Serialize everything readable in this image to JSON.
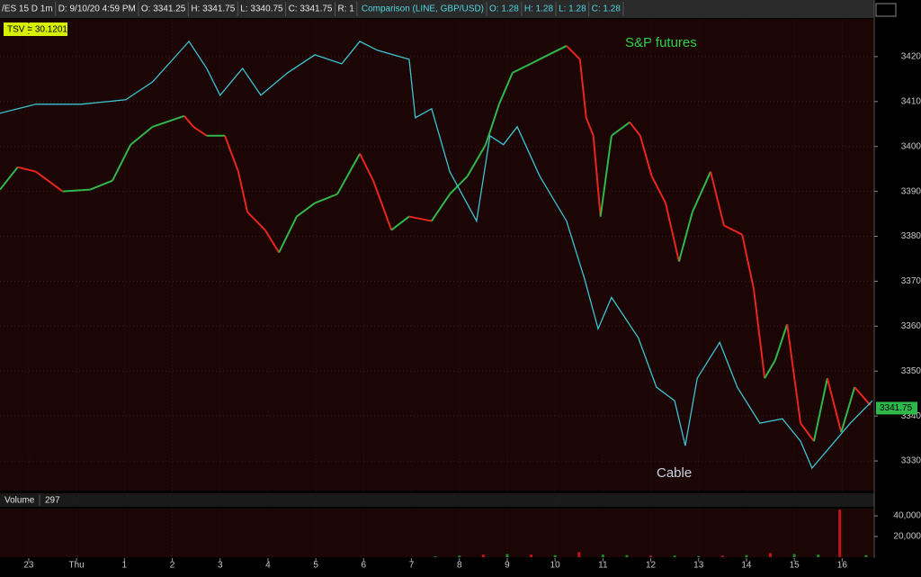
{
  "chart_data": [
    {
      "type": "line",
      "header": {
        "symbol": [
          "/ES 15 D 1m",
          "D: 9/10/20 4:59 PM",
          "O: 3341.25",
          "H: 3341.75",
          "L: 3340.75",
          "C: 3341.75",
          "R: 1"
        ],
        "comparison": [
          "Comparison (LINE, GBP/USD)",
          "O: 1.28",
          "H: 1.28",
          "L: 1.28",
          "C: 1.28"
        ]
      },
      "study_label": "TSV = 30.1201",
      "last_price": 3341.75,
      "xlim": [
        -0.6,
        17.67
      ],
      "xticks": [
        {
          "value": 0,
          "label": "23"
        },
        {
          "value": 1,
          "label": "Thu"
        },
        {
          "value": 2,
          "label": "1"
        },
        {
          "value": 3,
          "label": "2"
        },
        {
          "value": 4,
          "label": "3"
        },
        {
          "value": 5,
          "label": "4"
        },
        {
          "value": 6,
          "label": "5"
        },
        {
          "value": 7,
          "label": "6"
        },
        {
          "value": 8,
          "label": "7"
        },
        {
          "value": 9,
          "label": "8"
        },
        {
          "value": 10,
          "label": "9"
        },
        {
          "value": 11,
          "label": "10"
        },
        {
          "value": 12,
          "label": "11"
        },
        {
          "value": 13,
          "label": "12"
        },
        {
          "value": 14,
          "label": "13"
        },
        {
          "value": 15,
          "label": "14"
        },
        {
          "value": 16,
          "label": "15"
        },
        {
          "value": 17,
          "label": "16"
        }
      ],
      "ylim": [
        3323.4,
        3428.4
      ],
      "yticks": [
        3330,
        3340,
        3350,
        3360,
        3370,
        3380,
        3390,
        3400,
        3410,
        3420
      ],
      "grid": true,
      "series": [
        {
          "name": "S&P futures",
          "up_color": "#2fb84a",
          "down_color": "#e8261c",
          "x": [
            -0.6,
            -0.23,
            0.15,
            0.71,
            1.28,
            1.75,
            2.13,
            2.59,
            3.25,
            3.44,
            3.72,
            4.1,
            4.38,
            4.57,
            4.94,
            5.23,
            5.6,
            5.98,
            6.45,
            6.92,
            7.2,
            7.58,
            7.95,
            8.42,
            8.8,
            9.17,
            9.55,
            9.83,
            10.11,
            10.49,
            10.86,
            11.24,
            11.52,
            11.65,
            11.8,
            11.95,
            12.18,
            12.56,
            12.78,
            13.02,
            13.31,
            13.59,
            13.87,
            14.25,
            14.53,
            14.91,
            15.15,
            15.38,
            15.6,
            15.85,
            16.13,
            16.41,
            16.69,
            16.98,
            17.26,
            17.59
          ],
          "values": [
            3390.4,
            3395.4,
            3394.4,
            3390,
            3390.4,
            3392.4,
            3400.4,
            3404.4,
            3406.8,
            3404.4,
            3402.4,
            3402.4,
            3394.4,
            3385.4,
            3381.4,
            3376.4,
            3384.4,
            3387.4,
            3389.4,
            3398.4,
            3392.4,
            3381.4,
            3384.4,
            3383.4,
            3389.4,
            3393.4,
            3400.4,
            3409.4,
            3416.4,
            3418.4,
            3420.4,
            3422.4,
            3419.4,
            3406.4,
            3402.4,
            3384.4,
            3402.4,
            3405.4,
            3402.4,
            3393.4,
            3387.4,
            3374.4,
            3385.4,
            3394.4,
            3382.4,
            3380.4,
            3368.4,
            3348.4,
            3352.4,
            3360.4,
            3338.4,
            3334.4,
            3348.4,
            3336.4,
            3346.4,
            3342.4
          ]
        },
        {
          "name": "Cable",
          "color": "#3cc4d2",
          "x": [
            -0.6,
            0.15,
            1.09,
            2.03,
            2.59,
            3.35,
            3.72,
            4.0,
            4.47,
            4.85,
            5.41,
            5.98,
            6.54,
            6.92,
            7.29,
            7.95,
            8.08,
            8.42,
            8.8,
            9.36,
            9.64,
            9.92,
            10.21,
            10.68,
            11.24,
            11.62,
            11.9,
            12.18,
            12.74,
            13.12,
            13.5,
            13.72,
            13.97,
            14.44,
            14.81,
            15.28,
            15.75,
            16.13,
            16.37,
            16.69,
            17.17,
            17.63
          ],
          "values": [
            3407.4,
            3409.4,
            3409.4,
            3410.4,
            3414.4,
            3423.4,
            3417.4,
            3411.4,
            3417.4,
            3411.4,
            3416.4,
            3420.4,
            3418.4,
            3423.4,
            3421.4,
            3419.4,
            3406.4,
            3408.4,
            3394.4,
            3383.4,
            3402.4,
            3400.4,
            3404.4,
            3393.4,
            3383.4,
            3370.4,
            3359.4,
            3366.4,
            3357.4,
            3346.4,
            3343.4,
            3333.4,
            3348.4,
            3356.4,
            3346.4,
            3338.4,
            3339.4,
            3334.4,
            3328.4,
            3332.4,
            3338.4,
            3343.4
          ]
        }
      ]
    },
    {
      "type": "bar",
      "title": "Volume",
      "current_volume": 297,
      "xlim": [
        -0.6,
        17.67
      ],
      "ylim": [
        0,
        47000
      ],
      "yticks": [
        {
          "value": 20000,
          "label": "20,000"
        },
        {
          "value": 40000,
          "label": "40,000"
        }
      ],
      "x": [
        8.5,
        9,
        9.5,
        10,
        10.5,
        11,
        11.5,
        12,
        12.5,
        13,
        13.5,
        14,
        14.5,
        15,
        15.5,
        16,
        16.5,
        16.95,
        17.5
      ],
      "values": [
        800,
        1500,
        2500,
        3000,
        2500,
        2000,
        5000,
        2500,
        2000,
        1500,
        1500,
        1000,
        1500,
        2000,
        4000,
        3000,
        2500,
        46000,
        2000
      ],
      "colors": [
        "#1f8a2a",
        "#1f8a2a",
        "#c0141a",
        "#1f8a2a",
        "#c0141a",
        "#1f8a2a",
        "#c0141a",
        "#1f8a2a",
        "#1f8a2a",
        "#c0141a",
        "#1f8a2a",
        "#1f8a2a",
        "#c0141a",
        "#1f8a2a",
        "#c0141a",
        "#1f8a2a",
        "#1f8a2a",
        "#c0141a",
        "#1f8a2a"
      ]
    }
  ]
}
